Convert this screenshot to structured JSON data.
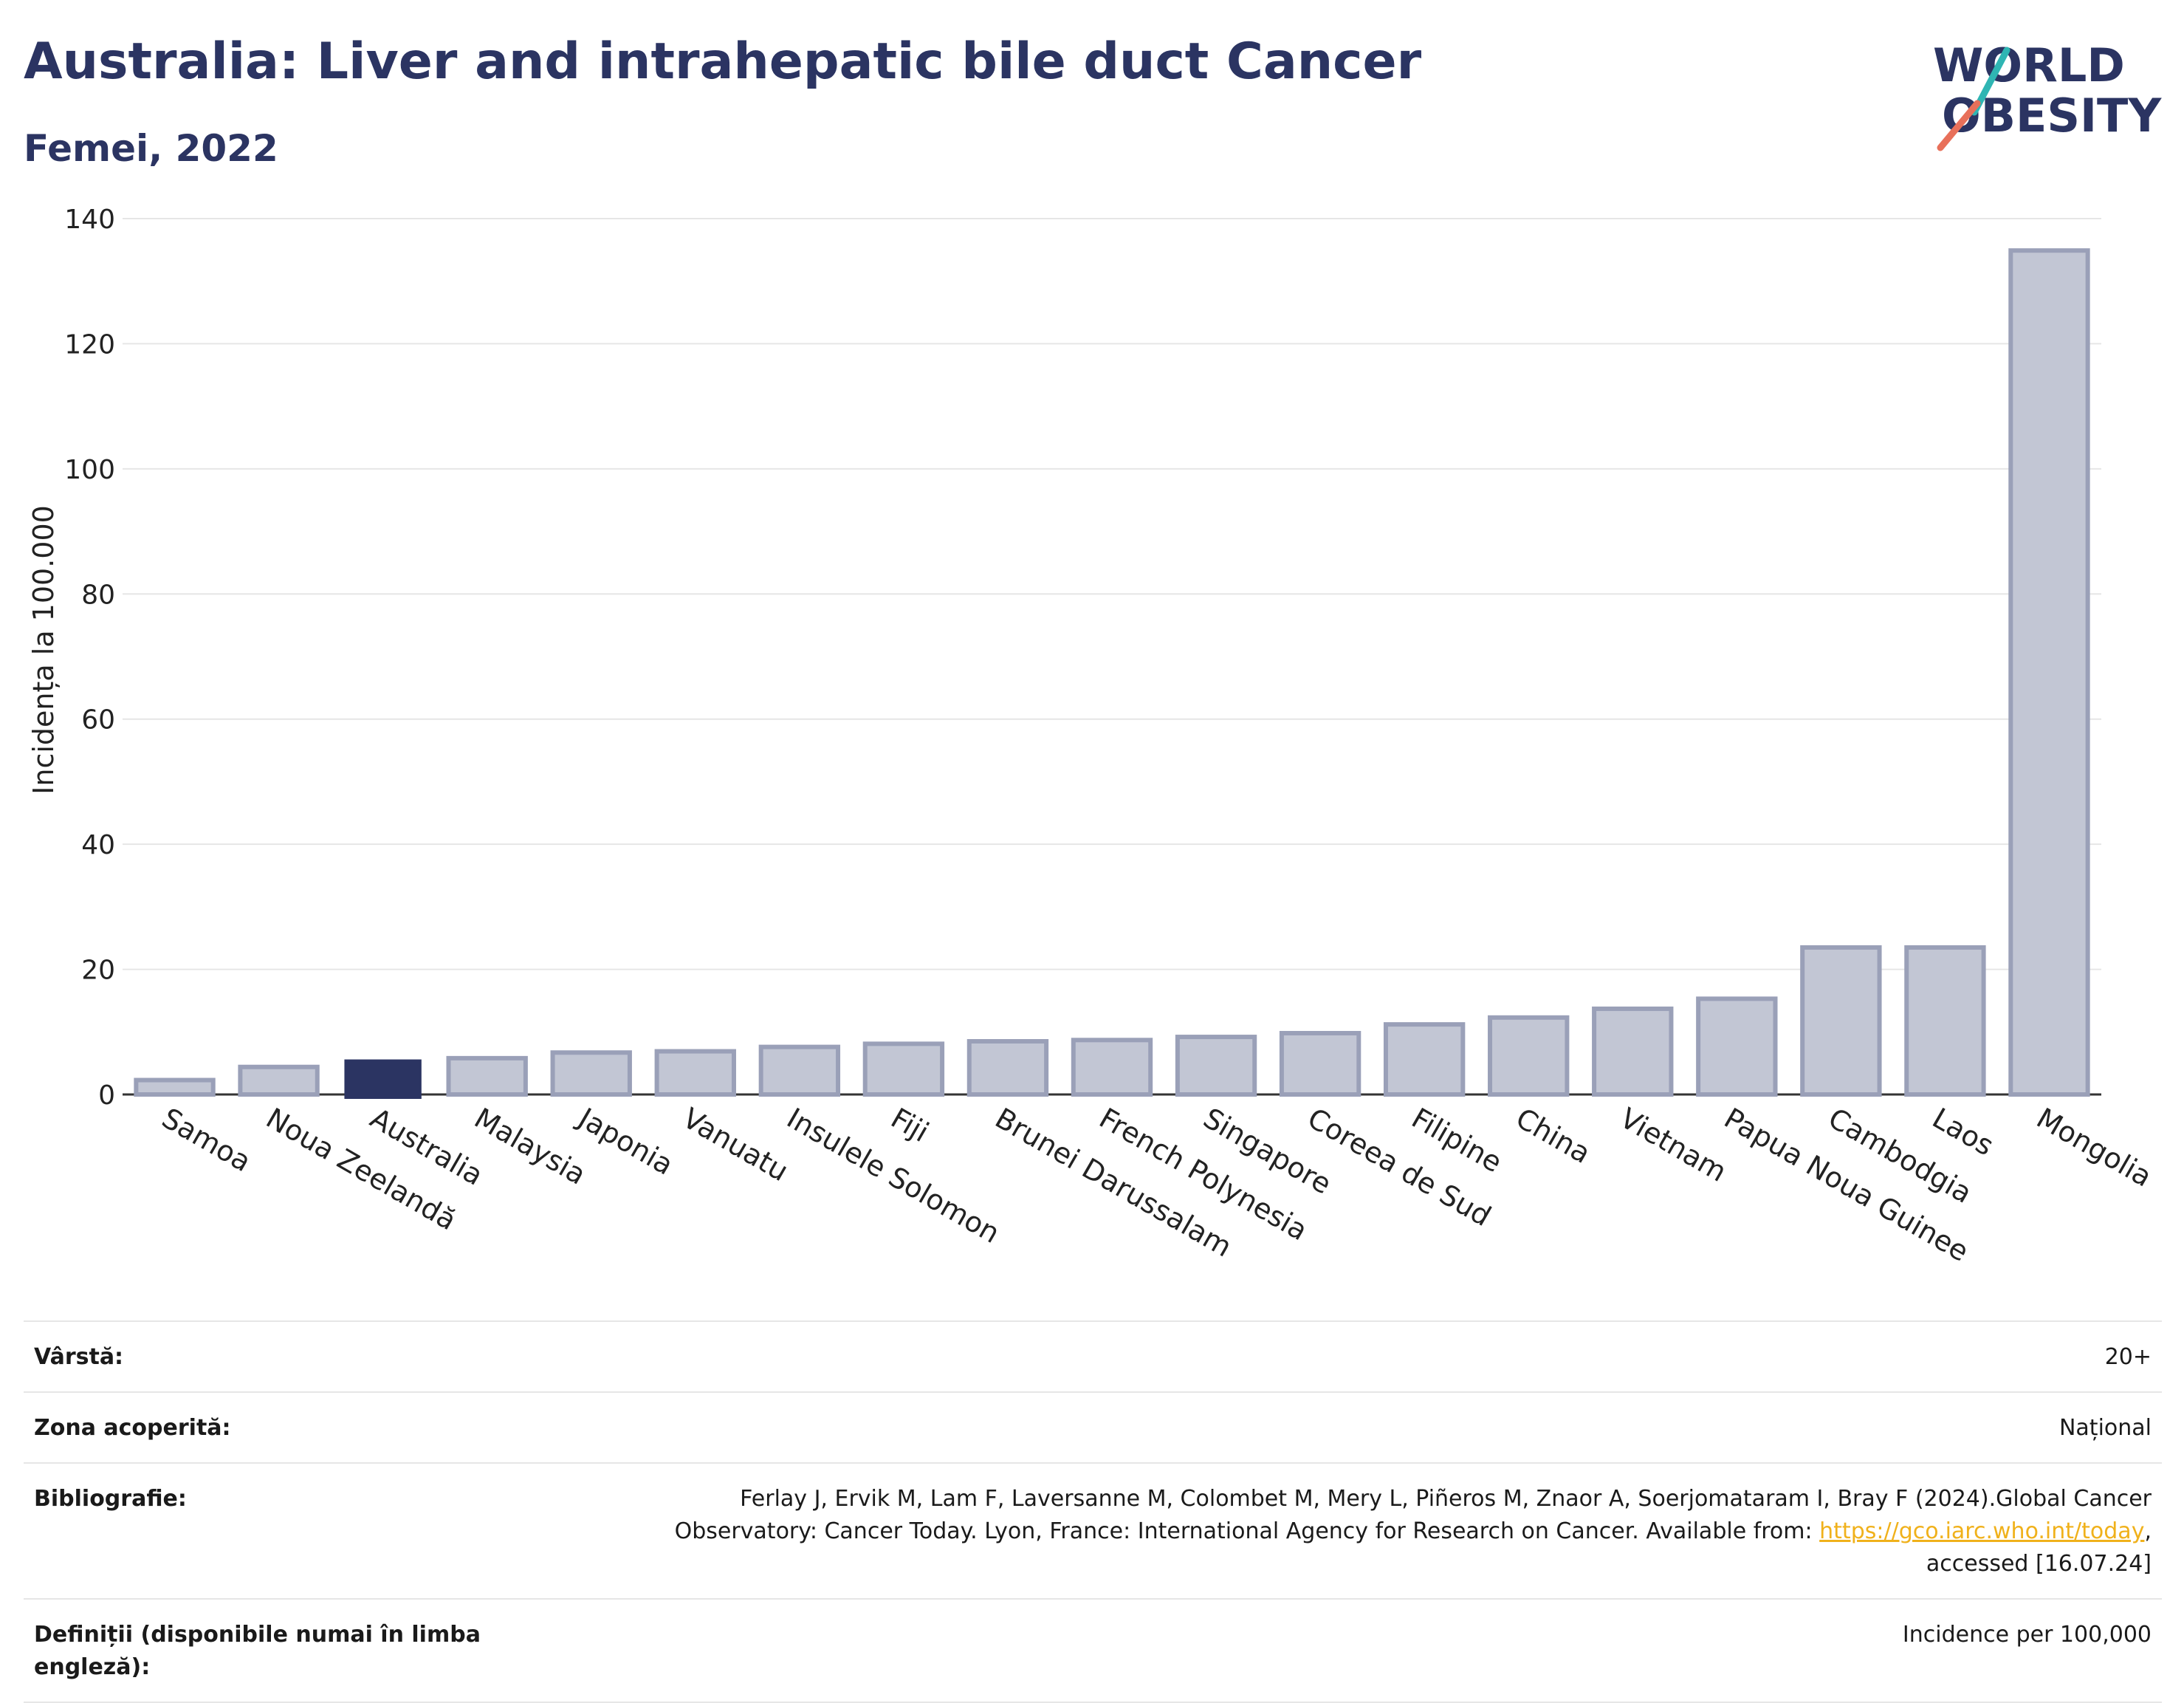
{
  "header": {
    "title": "Australia: Liver and intrahepatic bile duct Cancer",
    "subtitle": "Femei, 2022"
  },
  "logo": {
    "line1": "WORLD",
    "line2": "OBESITY",
    "accent_teal": "#2fb5b3",
    "accent_coral": "#e8705a",
    "text_color": "#2b3462"
  },
  "chart_data": {
    "type": "bar",
    "title": "Australia: Liver and intrahepatic bile duct Cancer",
    "subtitle": "Femei, 2022",
    "xlabel": "",
    "ylabel": "Incidența la 100.000",
    "ylim": [
      0,
      140
    ],
    "yticks": [
      0,
      20,
      40,
      60,
      80,
      100,
      120,
      140
    ],
    "grid": true,
    "highlight": "Australia",
    "colors": {
      "highlight": "#2b3462",
      "bar_fill": "#c2c6d4",
      "bar_stroke": "#9aa0b8"
    },
    "categories": [
      "Samoa",
      "Noua Zeelandă",
      "Australia",
      "Malaysia",
      "Japonia",
      "Vanuatu",
      "Insulele Solomon",
      "Fiji",
      "Brunei Darussalam",
      "French Polynesia",
      "Singapore",
      "Coreea de Sud",
      "Filipine",
      "China",
      "Vietnam",
      "Papua Noua Guinee",
      "Cambodgia",
      "Laos",
      "Mongolia"
    ],
    "values": [
      2.3,
      4.4,
      5.6,
      5.8,
      6.7,
      6.9,
      7.6,
      8.1,
      8.5,
      8.7,
      9.2,
      9.8,
      11.2,
      12.3,
      13.7,
      15.3,
      23.5,
      23.5,
      134.9
    ]
  },
  "info": {
    "rows": [
      {
        "label": "Vârstă:",
        "value": "20+"
      },
      {
        "label": "Zona acoperită:",
        "value": "Național"
      },
      {
        "label": "Bibliografie:",
        "value_before": "Ferlay J, Ervik M, Lam F, Laversanne M, Colombet M, Mery L, Piñeros M, Znaor A, Soerjomataram I, Bray F (2024).Global Cancer Observatory: Cancer Today. Lyon, France: International Agency for Research on Cancer. Available from: ",
        "link": "https://gco.iarc.who.int/today",
        "value_after": ", accessed [16.07.24]"
      },
      {
        "label": "Definiții (disponibile numai în limba engleză):",
        "value": "Incidence per 100,000"
      }
    ]
  }
}
